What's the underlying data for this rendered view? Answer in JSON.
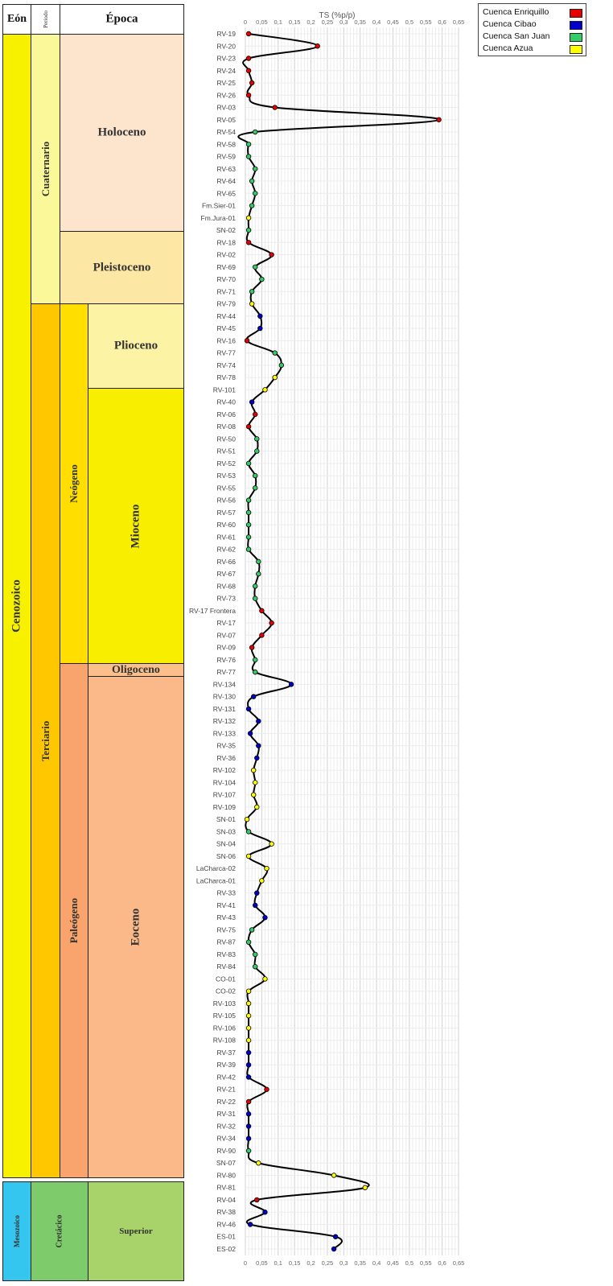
{
  "strat": {
    "headers": {
      "eon": "Eón",
      "periodo": "Periodo",
      "epoca": "Época"
    },
    "eons": [
      {
        "label": "Cenozoico",
        "color": "#f7f100"
      },
      {
        "label": "Mesozoico",
        "color": "#35c6ef"
      }
    ],
    "periods": [
      {
        "label": "Cuaternario",
        "color": "#fbf89a"
      },
      {
        "label": "Terciario",
        "color": "#ffc700"
      },
      {
        "label": "Cretácico",
        "color": "#7ecb6b"
      }
    ],
    "subperiods": [
      {
        "label": "Neógeno",
        "color": "#ffde00"
      },
      {
        "label": "Paleógeno",
        "color": "#f8a46c"
      }
    ],
    "epochs": [
      {
        "label": "Holoceno",
        "color": "#fde4cc"
      },
      {
        "label": "Pleistoceno",
        "color": "#fde7a4"
      },
      {
        "label": "Plioceno",
        "color": "#fdf3a4"
      },
      {
        "label": "Mioceno",
        "color": "#f8ef00"
      },
      {
        "label": "Oligoceno",
        "color": "#fbbf8c"
      },
      {
        "label": "Eoceno",
        "color": "#fbb98a"
      },
      {
        "label": "Superior",
        "color": "#a8d36a"
      }
    ]
  },
  "legend": [
    {
      "label": "Cuenca Enriquillo",
      "color": "#e60000"
    },
    {
      "label": "Cuenca Cibao",
      "color": "#0000cc"
    },
    {
      "label": "Cuenca San Juan",
      "color": "#33cc66"
    },
    {
      "label": "Cuenca Azua",
      "color": "#ffff00"
    }
  ],
  "chart_data": {
    "type": "line",
    "title": "TS (%p/p)",
    "x_axis_position": "top-and-bottom",
    "xlim": [
      0,
      0.65
    ],
    "x_ticks": [
      "0",
      "0,05",
      "0,1",
      "0,15",
      "0,2",
      "0,25",
      "0,3",
      "0,35",
      "0,4",
      "0,45",
      "0,5",
      "0,55",
      "0,6",
      "0,65"
    ],
    "grid": true,
    "line_color": "#000000",
    "categories": [
      "RV-19",
      "RV-20",
      "RV-23",
      "RV-24",
      "RV-25",
      "RV-26",
      "RV-03",
      "RV-05",
      "RV-54",
      "RV-58",
      "RV-59",
      "RV-63",
      "RV-64",
      "RV-65",
      "Fm.Sier-01",
      "Fm.Jura-01",
      "SN-02",
      "RV-18",
      "RV-02",
      "RV-69",
      "RV-70",
      "RV-71",
      "RV-79",
      "RV-44",
      "RV-45",
      "RV-16",
      "RV-77",
      "RV-74",
      "RV-78",
      "RV-101",
      "RV-40",
      "RV-06",
      "RV-08",
      "RV-50",
      "RV-51",
      "RV-52",
      "RV-53",
      "RV-55",
      "RV-56",
      "RV-57",
      "RV-60",
      "RV-61",
      "RV-62",
      "RV-66",
      "RV-67",
      "RV-68",
      "RV-73",
      "RV-17 Frontera",
      "RV-17",
      "RV-07",
      "RV-09",
      "RV-76",
      "RV-77",
      "RV-134",
      "RV-130",
      "RV-131",
      "RV-132",
      "RV-133",
      "RV-35",
      "RV-36",
      "RV-102",
      "RV-104",
      "RV-107",
      "RV-109",
      "SN-01",
      "SN-03",
      "SN-04",
      "SN-06",
      "LaCharca-02",
      "LaCharca-01",
      "RV-33",
      "RV-41",
      "RV-43",
      "RV-75",
      "RV-87",
      "RV-83",
      "RV-84",
      "CO-01",
      "CO-02",
      "RV-103",
      "RV-105",
      "RV-106",
      "RV-108",
      "RV-37",
      "RV-39",
      "RV-42",
      "RV-21",
      "RV-22",
      "RV-31",
      "RV-32",
      "RV-34",
      "RV-90",
      "SN-07",
      "RV-80",
      "RV-81",
      "RV-04",
      "RV-38",
      "RV-46",
      "ES-01",
      "ES-02"
    ],
    "values": [
      0.01,
      0.22,
      0.01,
      0.01,
      0.02,
      0.01,
      0.09,
      0.59,
      0.03,
      0.01,
      0.01,
      0.03,
      0.02,
      0.03,
      0.02,
      0.01,
      0.01,
      0.01,
      0.08,
      0.03,
      0.05,
      0.02,
      0.02,
      0.045,
      0.045,
      0.005,
      0.09,
      0.11,
      0.09,
      0.06,
      0.02,
      0.03,
      0.01,
      0.035,
      0.035,
      0.01,
      0.03,
      0.03,
      0.01,
      0.01,
      0.01,
      0.01,
      0.01,
      0.04,
      0.04,
      0.03,
      0.03,
      0.05,
      0.08,
      0.05,
      0.02,
      0.03,
      0.03,
      0.14,
      0.025,
      0.01,
      0.04,
      0.015,
      0.04,
      0.035,
      0.025,
      0.03,
      0.025,
      0.035,
      0.005,
      0.01,
      0.08,
      0.01,
      0.065,
      0.05,
      0.035,
      0.03,
      0.06,
      0.02,
      0.01,
      0.03,
      0.03,
      0.06,
      0.01,
      0.01,
      0.01,
      0.01,
      0.01,
      0.01,
      0.01,
      0.01,
      0.065,
      0.01,
      0.01,
      0.01,
      0.01,
      0.01,
      0.04,
      0.27,
      0.365,
      0.035,
      0.06,
      0.015,
      0.275,
      0.27
    ],
    "basins": [
      "Enriquillo",
      "Enriquillo",
      "Enriquillo",
      "Enriquillo",
      "Enriquillo",
      "Enriquillo",
      "Enriquillo",
      "Enriquillo",
      "San Juan",
      "San Juan",
      "San Juan",
      "San Juan",
      "San Juan",
      "San Juan",
      "San Juan",
      "Azua",
      "San Juan",
      "Enriquillo",
      "Enriquillo",
      "San Juan",
      "San Juan",
      "San Juan",
      "Azua",
      "Cibao",
      "Cibao",
      "Enriquillo",
      "San Juan",
      "San Juan",
      "Azua",
      "Azua",
      "Cibao",
      "Enriquillo",
      "Enriquillo",
      "San Juan",
      "San Juan",
      "San Juan",
      "San Juan",
      "San Juan",
      "San Juan",
      "San Juan",
      "San Juan",
      "San Juan",
      "San Juan",
      "San Juan",
      "San Juan",
      "San Juan",
      "San Juan",
      "Enriquillo",
      "Enriquillo",
      "Enriquillo",
      "Enriquillo",
      "San Juan",
      "San Juan",
      "Cibao",
      "Cibao",
      "Cibao",
      "Cibao",
      "Cibao",
      "Cibao",
      "Cibao",
      "Azua",
      "Azua",
      "Azua",
      "Azua",
      "Azua",
      "San Juan",
      "Azua",
      "Azua",
      "Azua",
      "Azua",
      "Cibao",
      "Cibao",
      "Cibao",
      "San Juan",
      "San Juan",
      "San Juan",
      "San Juan",
      "Azua",
      "Azua",
      "Azua",
      "Azua",
      "Azua",
      "Azua",
      "Cibao",
      "Cibao",
      "Cibao",
      "Enriquillo",
      "Enriquillo",
      "Cibao",
      "Cibao",
      "Cibao",
      "San Juan",
      "Azua",
      "Azua",
      "Azua",
      "Enriquillo",
      "Cibao",
      "Cibao",
      "Cibao",
      "Cibao"
    ],
    "basin_colors": {
      "Enriquillo": "#e60000",
      "Cibao": "#0000cc",
      "San Juan": "#33cc66",
      "Azua": "#ffff00"
    }
  }
}
